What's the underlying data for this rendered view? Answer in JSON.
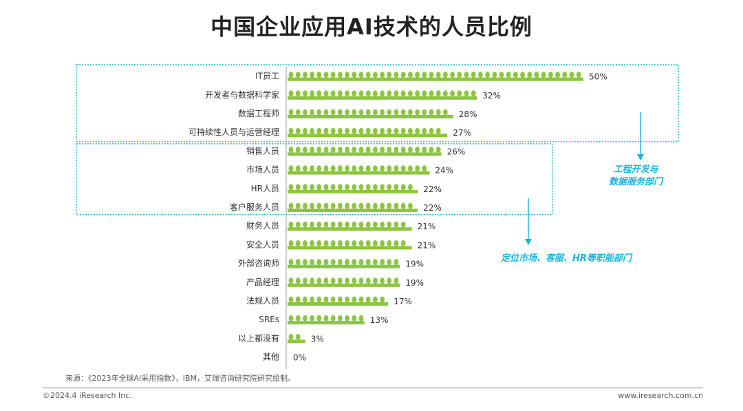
{
  "title": "中国企业应用AI技术的人员比例",
  "chart_data": {
    "type": "bar",
    "orientation": "horizontal",
    "unit": "%",
    "categories": [
      "IT员工",
      "开发者与数据科学家",
      "数据工程师",
      "可持续性人员与运营经理",
      "销售人员",
      "市场人员",
      "HR人员",
      "客户服务人员",
      "财务人员",
      "安全人员",
      "外部咨询师",
      "产品经理",
      "法规人员",
      "SREs",
      "以上都没有",
      "其他"
    ],
    "values": [
      50,
      32,
      28,
      27,
      26,
      24,
      22,
      22,
      21,
      21,
      19,
      19,
      17,
      13,
      3,
      0
    ],
    "value_labels": [
      "50%",
      "32%",
      "28%",
      "27%",
      "26%",
      "24%",
      "22%",
      "22%",
      "21%",
      "21%",
      "19%",
      "19%",
      "17%",
      "13%",
      "3%",
      "0%"
    ],
    "bar_color": "#8cc63f",
    "callout_color": "#19b4dc",
    "groups": [
      {
        "label_lines": [
          "工程开发与",
          "数据服务部门"
        ],
        "first": 0,
        "last": 3
      },
      {
        "label_lines": [
          "定位市场、客服、HR等职能部门"
        ],
        "first": 4,
        "last": 7
      }
    ]
  },
  "footer": {
    "source": "来源：《2023年全球AI采用指数》，IBM，艾瑞咨询研究院研究绘制。",
    "copyright": "©2024.4 iResearch Inc.",
    "website": "www.iresearch.com.cn"
  }
}
